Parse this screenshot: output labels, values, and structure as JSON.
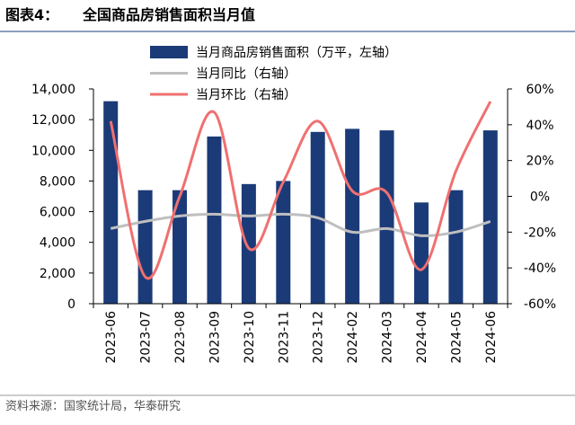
{
  "figure_label": "图表4：",
  "source": "资料来源：国家统计局，华泰研究",
  "chart_data": {
    "type": "bar-line",
    "title": "全国商品房销售面积当月值",
    "categories": [
      "2023-06",
      "2023-07",
      "2023-08",
      "2023-09",
      "2023-10",
      "2023-11",
      "2023-12",
      "2024-02",
      "2024-03",
      "2024-04",
      "2024-05",
      "2024-06"
    ],
    "series": [
      {
        "name": "当月商品房销售面积（万平，左轴）",
        "type": "bar",
        "color": "#1b3b78",
        "values": [
          13200,
          7400,
          7400,
          10900,
          7800,
          8000,
          11200,
          11400,
          11300,
          6600,
          7400,
          11300
        ]
      },
      {
        "name": "当月同比（右轴）",
        "type": "line",
        "axis": "y2",
        "color": "#bfbfbf",
        "values": [
          -18,
          -14,
          -11,
          -10,
          -11,
          -10,
          -12,
          -20,
          -18,
          -22,
          -20,
          -14
        ]
      },
      {
        "name": "当月环比（右轴）",
        "type": "line",
        "axis": "y2",
        "color": "#f07070",
        "values": [
          42,
          -45,
          0,
          47,
          -29,
          8,
          42,
          3,
          2,
          -41,
          14,
          53
        ]
      }
    ],
    "ylim": [
      0,
      14000
    ],
    "yticks": [
      0,
      {
        "value": 2000,
        "label": "2,000"
      },
      {
        "value": 4000,
        "label": "4,000"
      },
      {
        "value": 6000,
        "label": "6,000"
      },
      {
        "value": 8000,
        "label": "8,000"
      },
      {
        "value": 10000,
        "label": "10,000"
      },
      {
        "value": 12000,
        "label": "12,000"
      },
      {
        "value": 14000,
        "label": "14,000"
      }
    ],
    "y2lim": [
      -60,
      60
    ],
    "y2ticks": [
      {
        "value": -60,
        "label": "-60%"
      },
      {
        "value": -40,
        "label": "-40%"
      },
      {
        "value": -20,
        "label": "-20%"
      },
      {
        "value": 0,
        "label": "0%"
      },
      {
        "value": 20,
        "label": "20%"
      },
      {
        "value": 40,
        "label": "40%"
      },
      {
        "value": 60,
        "label": "60%"
      }
    ]
  }
}
